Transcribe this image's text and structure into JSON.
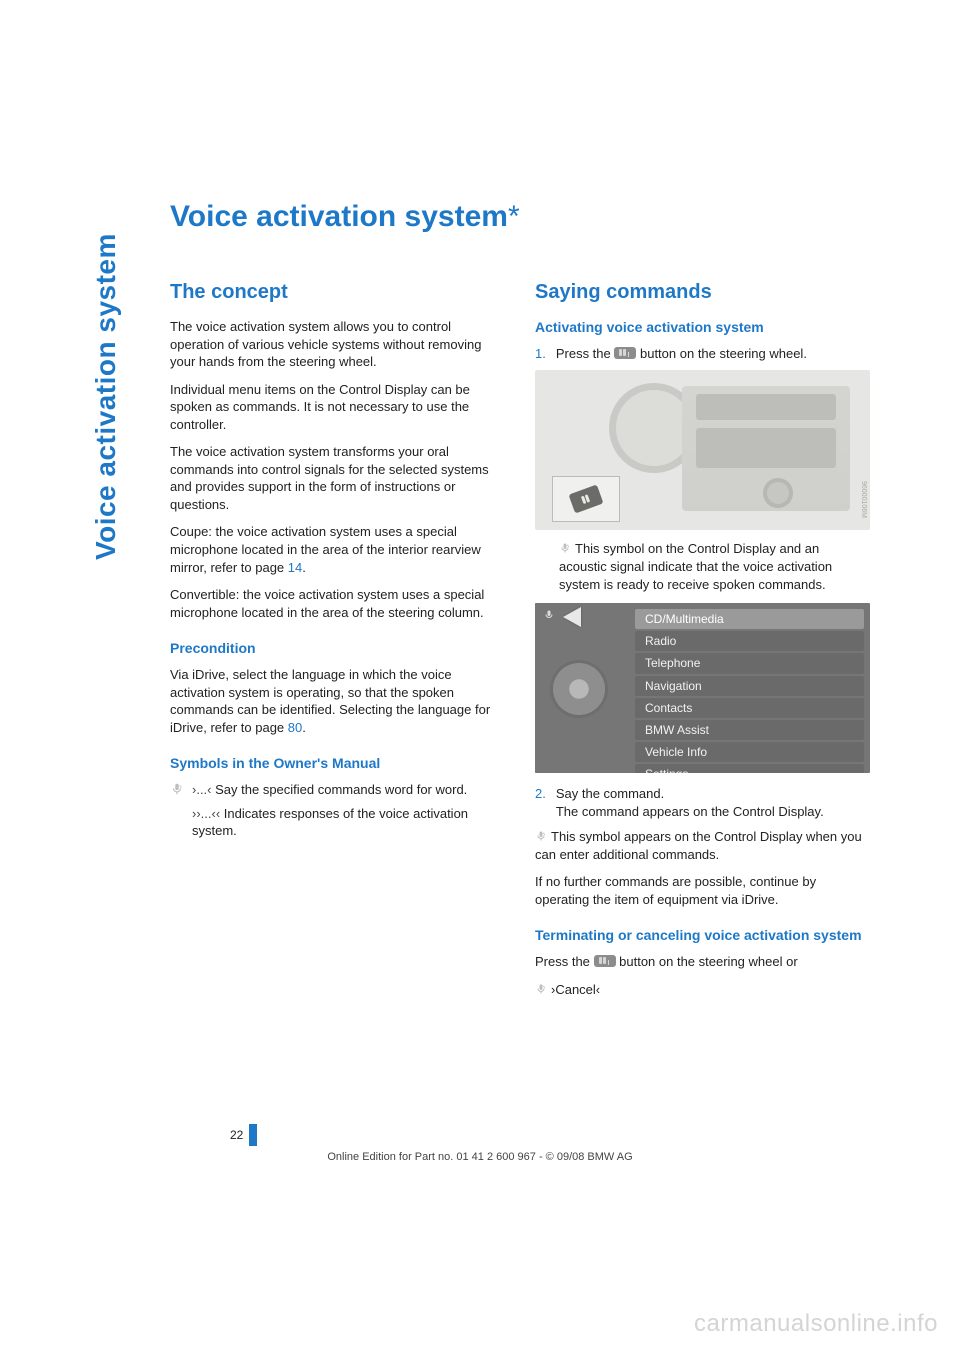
{
  "colors": {
    "accent": "#1e78c8",
    "body_text": "#222222",
    "muted": "#8c8c8c",
    "watermark": "#d4d4d4",
    "menu_bg": "#767676",
    "menu_row": "#6a6a6a",
    "menu_row_active": "#9a9a9a",
    "menu_text": "#f2f2f2",
    "dashboard_bg": "#e6e6e4"
  },
  "typography": {
    "title_size_pt": 22,
    "h2_size_pt": 15,
    "h3_size_pt": 11,
    "body_size_pt": 10,
    "side_tab_size_pt": 21
  },
  "side_tab": "Voice activation system",
  "title": "Voice activation system",
  "title_marker": "*",
  "left": {
    "h_concept": "The concept",
    "p1": "The voice activation system allows you to control operation of various vehicle systems without removing your hands from the steering wheel.",
    "p2": "Individual menu items on the Control Display can be spoken as commands. It is not necessary to use the controller.",
    "p3": "The voice activation system transforms your oral commands into control signals for the selected systems and provides support in the form of instructions or questions.",
    "p4_pre": "Coupe: the voice activation system uses a special microphone located in the area of the interior rearview mirror, refer to page ",
    "p4_link": "14",
    "p4_post": ".",
    "p5": "Convertible: the voice activation system uses a special microphone located in the area of the steering column.",
    "h_precondition": "Precondition",
    "p6_pre": "Via iDrive, select the language in which the voice activation system is operating, so that the spoken commands can be identified. Selecting the language for iDrive, refer to page ",
    "p6_link": "80",
    "p6_post": ".",
    "h_symbols": "Symbols in the Owner's Manual",
    "sym1_mark": "›...‹",
    "sym1_text": "Say the specified commands word for word.",
    "sym2_mark": "››...‹‹",
    "sym2_text": "Indicates responses of the voice activation system."
  },
  "right": {
    "h_saying": "Saying commands",
    "h_activating": "Activating voice activation system",
    "step1_num": "1.",
    "step1_pre": "Press the ",
    "step1_post": " button on the steering wheel.",
    "dashboard_sidecode": "96000106M",
    "p_after_dash": "This symbol on the Control Display and an acoustic signal indicate that the voice activation system is ready to receive spoken commands.",
    "menu_items": [
      "CD/Multimedia",
      "Radio",
      "Telephone",
      "Navigation",
      "Contacts",
      "BMW Assist",
      "Vehicle Info",
      "Settings"
    ],
    "menu_active_index": 0,
    "step2_num": "2.",
    "step2_line1": "Say the command.",
    "step2_line2": "The command appears on the Control Display.",
    "p_after_menu": "This symbol appears on the Control Display when you can enter additional commands.",
    "p_after_menu2": "If no further commands are possible, continue by operating the item of equipment via iDrive.",
    "h_terminating": "Terminating or canceling voice activation system",
    "term_pre": "Press the ",
    "term_post": " button on the steering wheel or",
    "cancel_cmd": "›Cancel‹"
  },
  "page_number": "22",
  "footer": "Online Edition for Part no. 01 41 2 600 967  - © 09/08 BMW AG",
  "watermark": "carmanualsonline.info"
}
